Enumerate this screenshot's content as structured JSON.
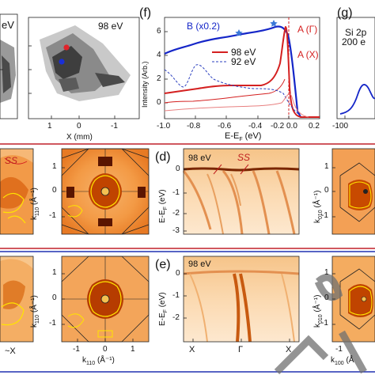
{
  "top_left": {
    "energy_label_left": "eV",
    "energy_label_right": "98 eV",
    "xlabel": "X (mm)",
    "xticks": [
      "1",
      "0",
      "-1"
    ],
    "markers": [
      {
        "name": "red-dot",
        "color": "#e0242b"
      },
      {
        "name": "blue-dot",
        "color": "#1a2fd6"
      }
    ]
  },
  "panel_f": {
    "letter": "(f)",
    "ylabel": "Intensity (Arb.)",
    "xlabel": "E-E_F (eV)",
    "xlabel_main": "E-E",
    "xlabel_sub": "F",
    "xlabel_unit": " (eV)",
    "annotations": {
      "B": "B (x0.2)",
      "A_gamma": "A (Γ)",
      "A_x": "A (X)"
    },
    "legend": [
      {
        "label": "98 eV",
        "color": "#d42020",
        "style": "solid"
      },
      {
        "label": "92 eV",
        "color": "#2b3fbf",
        "style": "dashed"
      }
    ],
    "colors": {
      "B": "#1526c8",
      "A98": "#d42020",
      "A92": "#2b3fbf",
      "AX": "#e88080"
    }
  },
  "panel_g": {
    "letter": "(g)",
    "text_line1": "Si 2p",
    "text_line2": "200 e",
    "xtick": "-100"
  },
  "panel_d": {
    "letter": "(d)",
    "energy": "98 eV",
    "ss_label": "SS",
    "ylabel_main": "E-E",
    "ylabel_sub": "F",
    "ylabel_unit": " (eV)",
    "yticks": [
      "0",
      "-1",
      "-2",
      "-3"
    ]
  },
  "panel_e": {
    "letter": "(e)",
    "energy": "98 eV",
    "ylabel_main": "E-E",
    "ylabel_sub": "F",
    "ylabel_unit": " (eV)",
    "yticks": [
      "0",
      "-1",
      "-2"
    ],
    "xticks": [
      "X",
      "Γ",
      "X"
    ]
  },
  "row1_left": {
    "ss_label": "SS"
  },
  "kmap_row1": {
    "ylabel_main": "k",
    "ylabel_sub": "110",
    "ylabel_unit": " (Å",
    "yticks": [
      "1",
      "0",
      "-1"
    ]
  },
  "kmap_row2": {
    "ylabel_main": "k",
    "ylabel_sub": "110",
    "ylabel_unit": " (Å",
    "yticks": [
      "1",
      "0",
      "-1"
    ],
    "xlabel_main": "k",
    "xlabel_sub": "110",
    "xlabel_unit": " (Å",
    "xticks": [
      "-1",
      "0",
      "1"
    ]
  },
  "right_col_row1": {
    "ylabel_main": "k",
    "ylabel_sub": "010",
    "ylabel_unit": " (Å",
    "yticks": [
      "1",
      "0",
      "-1"
    ]
  },
  "right_col_row2": {
    "ylabel_main": "k",
    "ylabel_sub": "010",
    "ylabel_unit": " (Å",
    "yticks": [
      "1",
      "0",
      "-1"
    ],
    "xlabel_main": "k",
    "xlabel_sub": "100",
    "xlabel_unit": " (Å",
    "xticks": [
      "-1"
    ]
  },
  "bottom_left": {
    "xtick": "~X"
  },
  "colors": {
    "orange_dark": "#c84a00",
    "orange_mid": "#f08a2a",
    "orange_light": "#fbd6a6",
    "frame_red": "#c0202a",
    "frame_blue": "#2030b0",
    "contour_yellow": "#ffe400"
  }
}
